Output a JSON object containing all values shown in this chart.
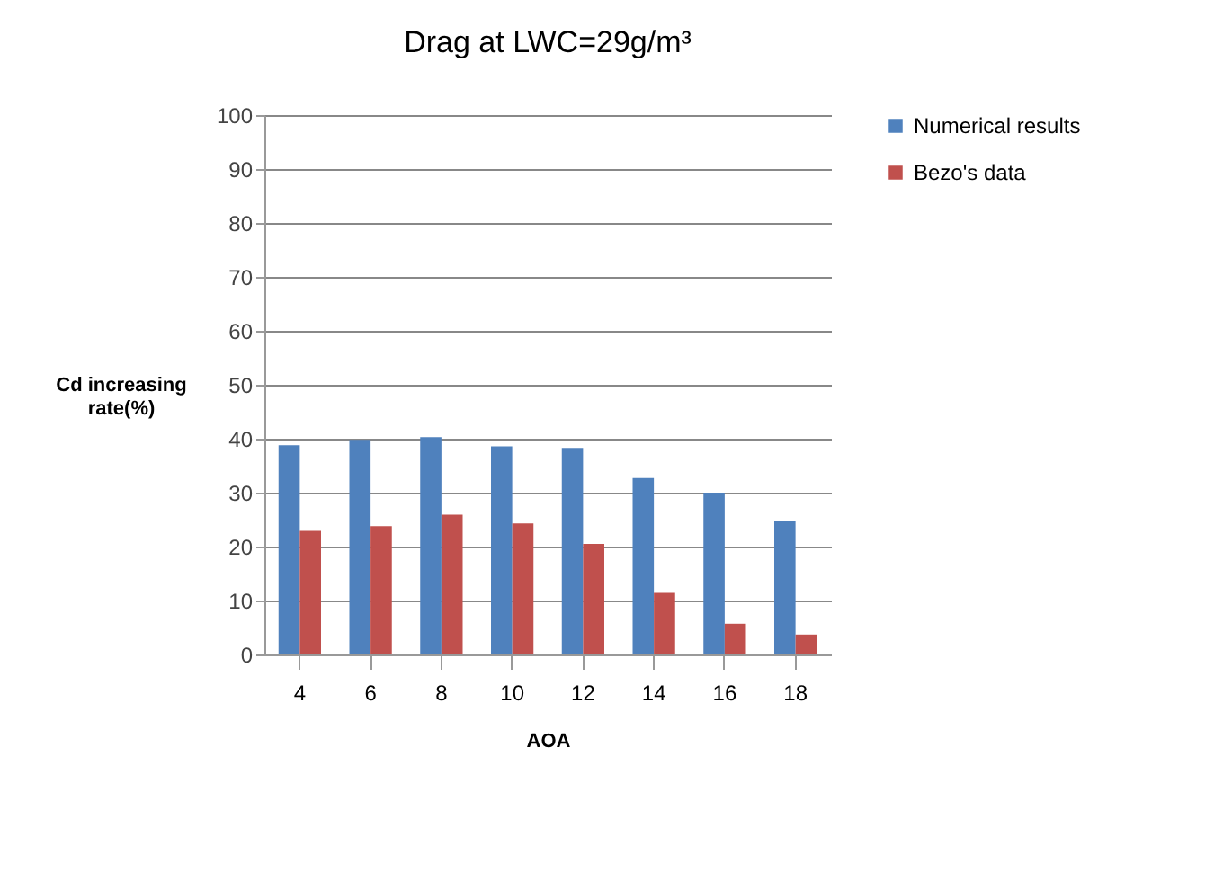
{
  "chart_data": {
    "type": "bar",
    "title": "Drag at LWC=29g/m³",
    "xlabel": "AOA",
    "ylabel": "Cd increasing rate(%)",
    "categories": [
      "4",
      "6",
      "8",
      "10",
      "12",
      "14",
      "16",
      "18"
    ],
    "series": [
      {
        "name": "Numerical results",
        "color": "#4f81bd",
        "values": [
          38.8,
          39.8,
          40.3,
          38.6,
          38.3,
          32.7,
          30,
          24.7
        ]
      },
      {
        "name": "Bezo's data",
        "color": "#c0504d",
        "values": [
          22.9,
          23.8,
          25.9,
          24.3,
          20.5,
          11.4,
          5.7,
          3.7
        ]
      }
    ],
    "ylim": [
      0,
      100
    ],
    "yticks": [
      0,
      10,
      20,
      30,
      40,
      50,
      60,
      70,
      80,
      90,
      100
    ],
    "grid": "y",
    "legend": "right"
  }
}
